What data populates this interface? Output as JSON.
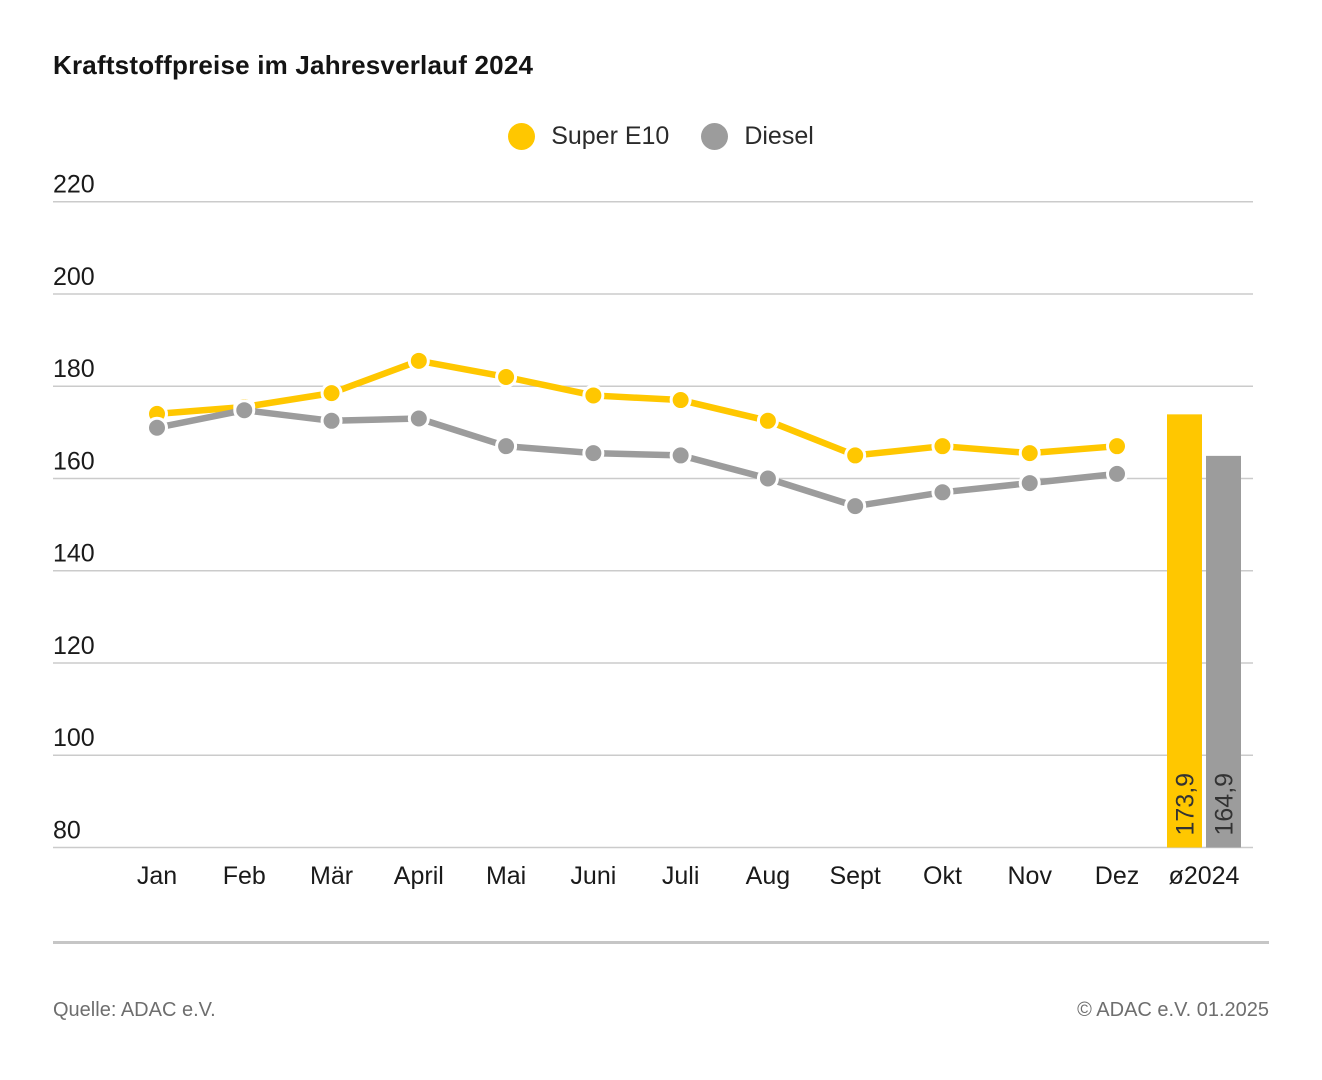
{
  "title": "Kraftstoffpreise im Jahresverlauf 2024",
  "footer": {
    "source": "Quelle: ADAC e.V.",
    "copyright": "© ADAC e.V. 01.2025"
  },
  "colors": {
    "super_e10": "#FFC700",
    "diesel": "#9C9C9C",
    "grid": "#CBCBCB",
    "text": "#1A1A1A",
    "bar_label": "#333333",
    "muted_text": "#6E6E6E"
  },
  "chart_data": {
    "type": "line",
    "title": "Kraftstoffpreise im Jahresverlauf 2024",
    "categories": [
      "Jan",
      "Feb",
      "Mär",
      "April",
      "Mai",
      "Juni",
      "Juli",
      "Aug",
      "Sept",
      "Okt",
      "Nov",
      "Dez"
    ],
    "average_category": "ø2024",
    "series": [
      {
        "name": "Super E10",
        "color": "#FFC700",
        "values": [
          174.0,
          175.5,
          178.5,
          185.5,
          182.0,
          178.0,
          177.0,
          172.5,
          165.0,
          167.0,
          165.5,
          167.0
        ],
        "average": 173.9,
        "average_label": "173,9"
      },
      {
        "name": "Diesel",
        "color": "#9C9C9C",
        "values": [
          171.0,
          174.8,
          172.5,
          173.0,
          167.0,
          165.5,
          165.0,
          160.0,
          154.0,
          157.0,
          159.0,
          161.0
        ],
        "average": 164.9,
        "average_label": "164,9"
      }
    ],
    "ylim": [
      80,
      220
    ],
    "yticks": [
      220,
      200,
      180,
      160,
      140,
      120,
      100,
      80
    ],
    "ytick_step": 20,
    "grid": true,
    "legend_position": "top-center",
    "average_bars": true
  }
}
